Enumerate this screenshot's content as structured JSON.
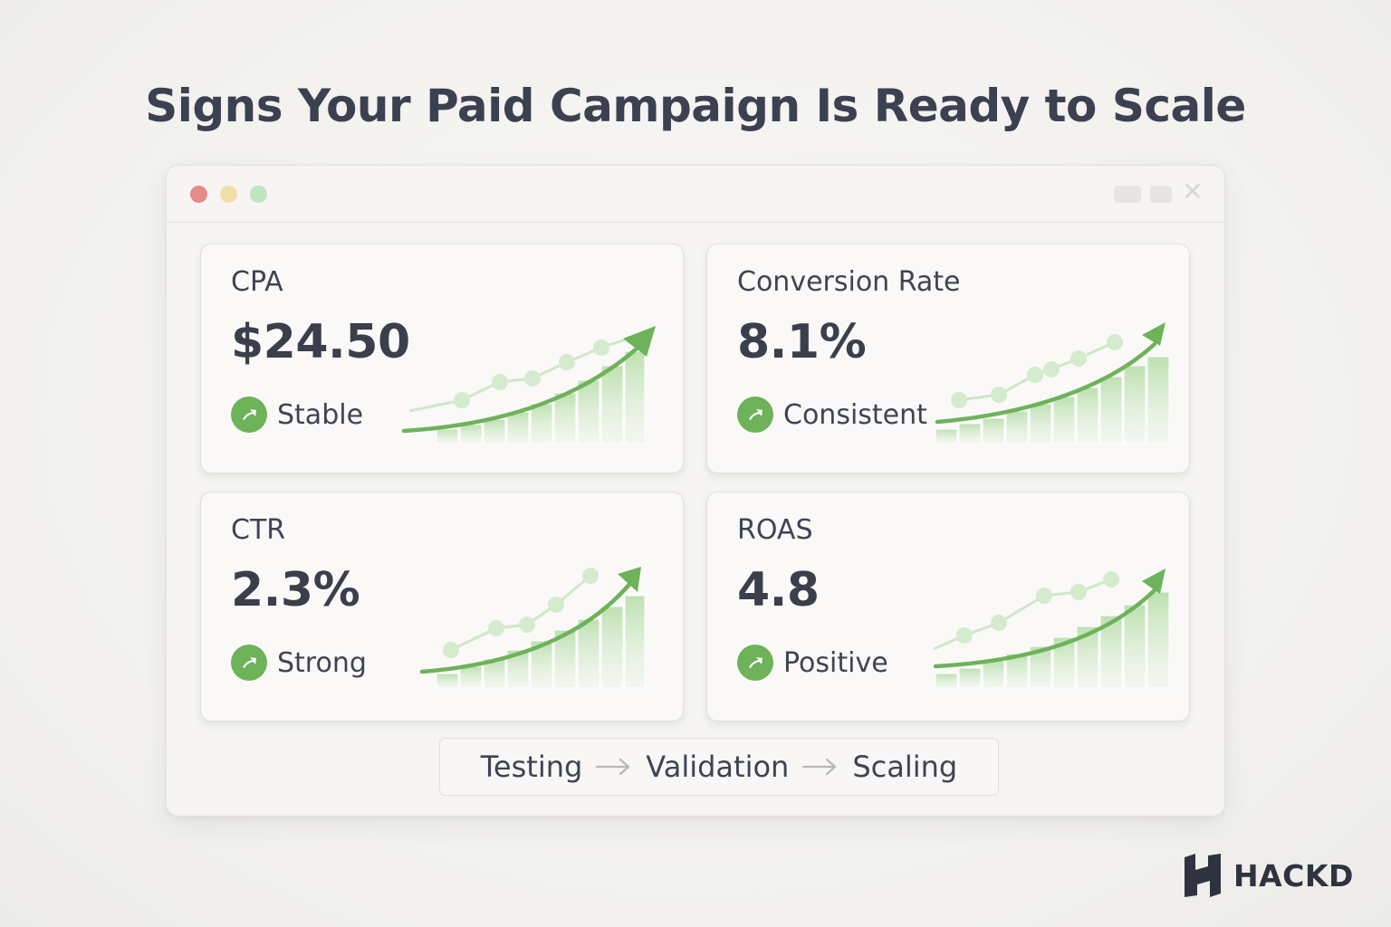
{
  "page": {
    "title": "Signs Your Paid Campaign Is Ready to Scale"
  },
  "window": {
    "controls": [
      "close-dot",
      "minimize-dot",
      "maximize-dot"
    ]
  },
  "metrics": [
    {
      "label": "CPA",
      "value": "$24.50",
      "status": "Stable",
      "trend": "up"
    },
    {
      "label": "Conversion Rate",
      "value": "8.1%",
      "status": "Consistent",
      "trend": "up"
    },
    {
      "label": "CTR",
      "value": "2.3%",
      "status": "Strong",
      "trend": "up"
    },
    {
      "label": "ROAS",
      "value": "4.8",
      "status": "Positive",
      "trend": "up"
    }
  ],
  "flow": {
    "steps": [
      "Testing",
      "Validation",
      "Scaling"
    ]
  },
  "brand": {
    "name": "HACKD"
  },
  "colors": {
    "accent_green": "#6eb25a",
    "text_dark": "#3a3f4b"
  }
}
